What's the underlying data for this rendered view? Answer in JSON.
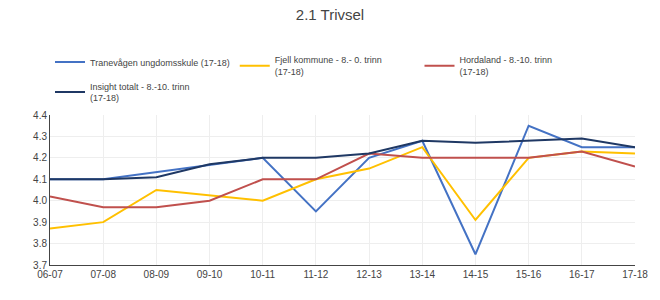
{
  "chart_data": {
    "type": "line",
    "title": "2.1 Trivsel",
    "categories": [
      "06-07",
      "07-08",
      "08-09",
      "09-10",
      "10-11",
      "11-12",
      "12-13",
      "13-14",
      "14-15",
      "15-16",
      "16-17",
      "17-18"
    ],
    "series": [
      {
        "name": "Tranevågen ungdomsskule (17-18)",
        "color": "#4472C4",
        "values": [
          4.1,
          4.1,
          null,
          null,
          4.2,
          3.95,
          4.2,
          4.28,
          3.75,
          4.35,
          4.25,
          4.25
        ]
      },
      {
        "name": "Fjell kommune - 8.- 0. trinn\n(17-18)",
        "color": "#FFC000",
        "values": [
          3.87,
          3.9,
          4.05,
          null,
          4.0,
          4.1,
          4.15,
          4.25,
          3.91,
          4.2,
          4.23,
          4.22
        ]
      },
      {
        "name": "Hordaland - 8.-10. trinn\n(17-18)",
        "color": "#C0504D",
        "values": [
          4.02,
          3.97,
          3.97,
          4.0,
          4.1,
          4.1,
          4.22,
          4.2,
          4.2,
          4.2,
          4.23,
          4.16
        ]
      },
      {
        "name": "Insight totalt - 8.-10. trinn\n(17-18)",
        "color": "#1F3864",
        "values": [
          4.1,
          4.1,
          4.11,
          4.17,
          4.2,
          4.2,
          4.22,
          4.28,
          4.27,
          4.28,
          4.29,
          4.25
        ]
      }
    ],
    "ylim": [
      3.7,
      4.4
    ],
    "yticks": [
      3.7,
      3.8,
      3.9,
      {
        "value": 4.0,
        "label": "4.0"
      },
      4.1,
      4.2,
      4.3,
      4.4
    ],
    "grid": true,
    "legend": "top"
  }
}
